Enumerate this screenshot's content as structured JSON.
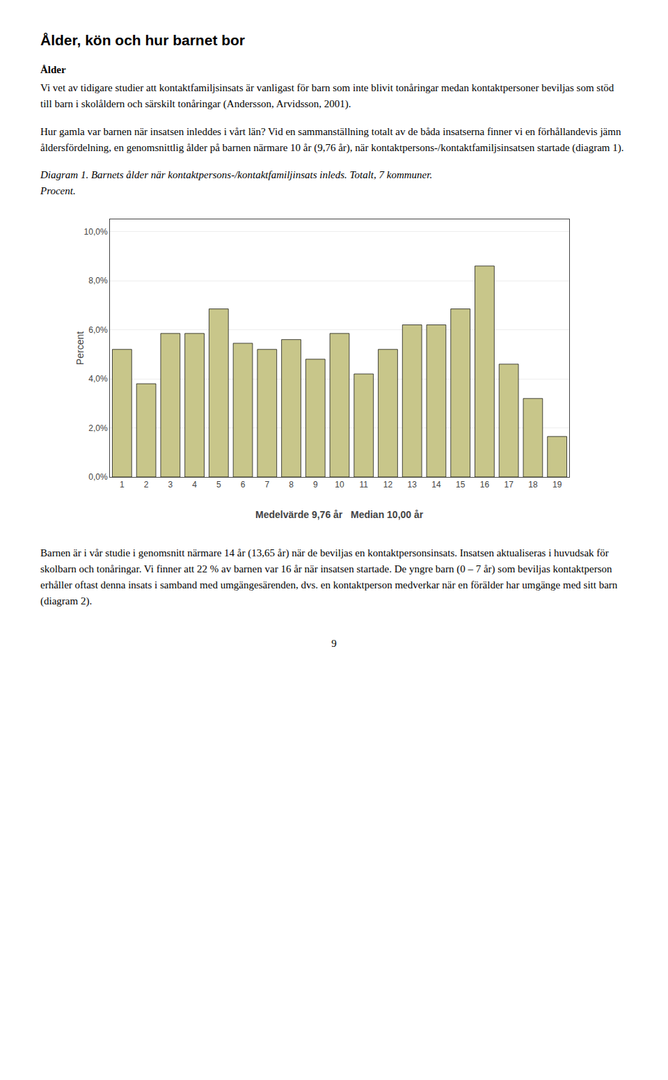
{
  "page_title": "Ålder, kön och hur barnet bor",
  "heading": "Ålder",
  "paragraphs": [
    "Vi vet av tidigare studier att kontaktfamiljsinsats är vanligast för barn som inte blivit tonåringar medan kontaktpersoner beviljas som stöd till barn i skolåldern och särskilt tonåringar (Andersson, Arvidsson, 2001).",
    "Hur gamla var barnen när insatsen inleddes i vårt län? Vid en sammanställning totalt av de båda insatserna finner vi en förhållandevis jämn åldersfördelning, en genomsnittlig ålder på barnen närmare 10 år (9,76 år), när kontaktpersons-/kontaktfamiljsinsatsen startade (diagram 1)."
  ],
  "chart_data": {
    "type": "bar",
    "title": "Diagram 1. Barnets ålder när kontaktpersons-/kontaktfamiljinsats inleds. Totalt, 7 kommuner.",
    "subtitle": "Procent.",
    "categories": [
      1,
      2,
      3,
      4,
      5,
      6,
      7,
      8,
      9,
      10,
      11,
      12,
      13,
      14,
      15,
      16,
      17,
      18,
      19
    ],
    "values": [
      5.2,
      3.8,
      5.85,
      5.85,
      6.85,
      5.45,
      5.2,
      5.6,
      4.8,
      5.85,
      4.2,
      5.2,
      6.2,
      6.2,
      6.85,
      8.6,
      4.6,
      3.2,
      1.65
    ],
    "color": "#C8C68A",
    "ylabel": "Percent",
    "ylim": [
      0,
      10.5
    ],
    "yticks": [
      {
        "value": 0.0,
        "label": "0,0%"
      },
      {
        "value": 2.0,
        "label": "2,0%"
      },
      {
        "value": 4.0,
        "label": "4,0%"
      },
      {
        "value": 6.0,
        "label": "6,0%"
      },
      {
        "value": 8.0,
        "label": "8,0%"
      },
      {
        "value": 10.0,
        "label": "10,0%"
      }
    ],
    "annotations": [
      "Medelvärde 9,76 år   Median 10,00 år"
    ],
    "grid": true
  },
  "bottom_paragraph": "Barnen är i vår studie i genomsnitt närmare 14 år (13,65 år) när de beviljas en kontaktpersonsinsats. Insatsen aktualiseras i huvudsak för skolbarn och tonåringar. Vi finner att 22 % av barnen var 16 år när insatsen startade. De yngre barn (0 – 7 år) som beviljas kontaktperson erhåller oftast denna insats i samband med umgängesärenden, dvs. en kontaktperson medverkar när en förälder har umgänge med sitt barn (diagram 2).",
  "page_number": "9"
}
